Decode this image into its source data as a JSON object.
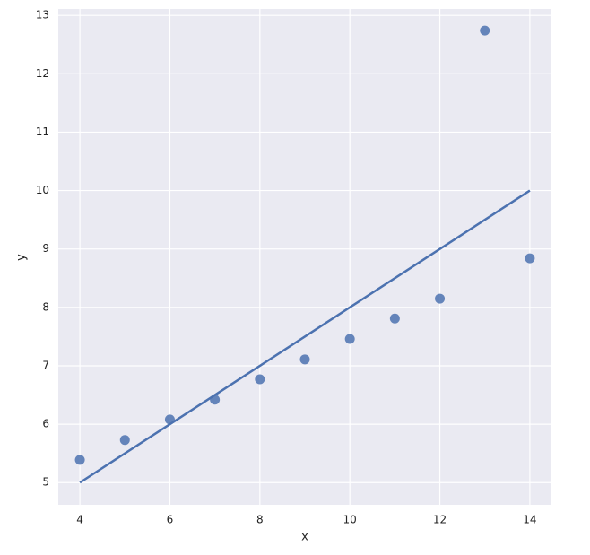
{
  "chart_data": {
    "type": "scatter",
    "x_label": "x",
    "y_label": "y",
    "x": [
      10,
      8,
      13,
      9,
      11,
      14,
      6,
      4,
      12,
      7,
      5
    ],
    "y": [
      7.46,
      6.77,
      12.74,
      7.11,
      7.81,
      8.84,
      6.08,
      5.39,
      8.15,
      6.42,
      5.73
    ],
    "color": "#4c72b0",
    "regression_line": {
      "x": [
        4,
        14
      ],
      "y": [
        5.0,
        10.0
      ],
      "color": "#4c72b0"
    },
    "xlim": [
      3.52,
      14.48
    ],
    "ylim": [
      4.62,
      13.11
    ],
    "xticks": [
      4,
      6,
      8,
      10,
      12,
      14
    ],
    "yticks": [
      5,
      6,
      7,
      8,
      9,
      10,
      11,
      12,
      13
    ],
    "grid": true,
    "background": "#eaeaf2"
  }
}
